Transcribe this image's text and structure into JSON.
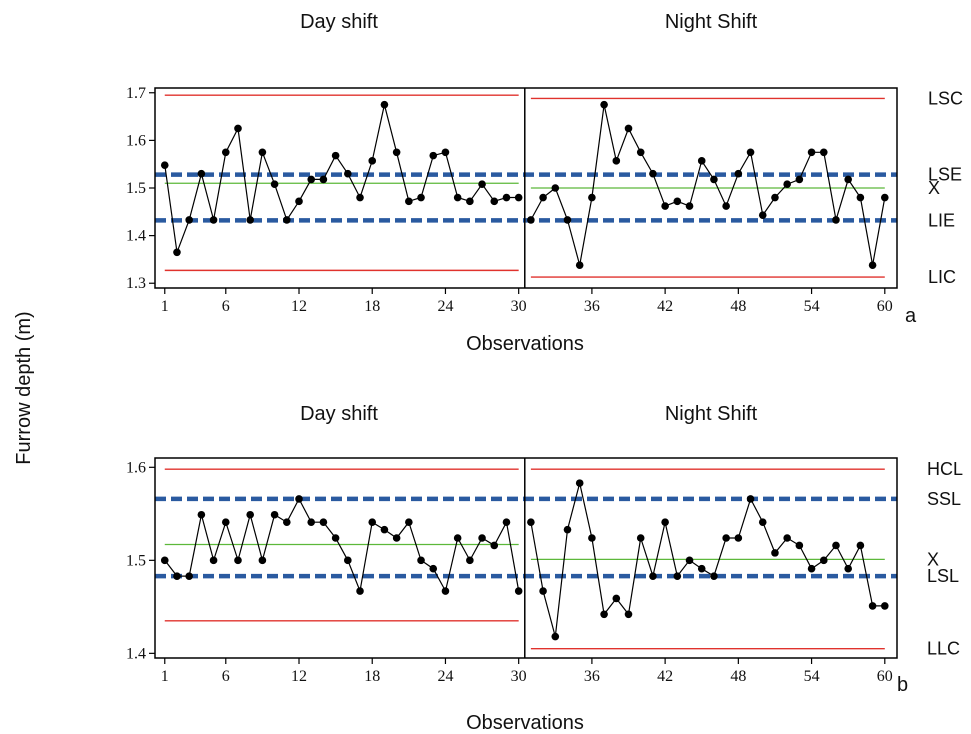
{
  "ylabel": "Furrow  depth (m)",
  "chart_data": [
    {
      "type": "line",
      "panel": "a",
      "xlabel": "Observations",
      "section_titles": [
        "Day shift",
        "Night Shift"
      ],
      "x_ticks": [
        1,
        6,
        12,
        18,
        24,
        30,
        36,
        42,
        48,
        54,
        60
      ],
      "y_ticks": [
        "1.3",
        "1.4",
        "1.5",
        "1.6",
        "1.7"
      ],
      "xlim": [
        0.2,
        61
      ],
      "ylim": [
        1.29,
        1.71
      ],
      "divider_at": 30.5,
      "colors": {
        "control": "#e0322d",
        "spec": "#2a5aa0",
        "mean": "#5cb83a",
        "data": "#000000"
      },
      "series": [
        {
          "x": [
            1,
            2,
            3,
            4,
            5,
            6,
            7,
            8,
            9,
            10,
            11,
            12,
            13,
            14,
            15,
            16,
            17,
            18,
            19,
            20,
            21,
            22,
            23,
            24,
            25,
            26,
            27,
            28,
            29,
            30
          ],
          "values": [
            1.548,
            1.365,
            1.433,
            1.53,
            1.433,
            1.575,
            1.625,
            1.433,
            1.575,
            1.508,
            1.433,
            1.472,
            1.518,
            1.518,
            1.568,
            1.53,
            1.48,
            1.557,
            1.675,
            1.575,
            1.472,
            1.48,
            1.568,
            1.575,
            1.48,
            1.472,
            1.508,
            1.472,
            1.48,
            1.48
          ]
        },
        {
          "x": [
            31,
            32,
            33,
            34,
            35,
            36,
            37,
            38,
            39,
            40,
            41,
            42,
            43,
            44,
            45,
            46,
            47,
            48,
            49,
            50,
            51,
            52,
            53,
            54,
            55,
            56,
            57,
            58,
            59,
            60
          ],
          "values": [
            1.433,
            1.48,
            1.5,
            1.433,
            1.338,
            1.48,
            1.675,
            1.557,
            1.625,
            1.575,
            1.53,
            1.462,
            1.472,
            1.462,
            1.557,
            1.518,
            1.462,
            1.53,
            1.575,
            1.443,
            1.48,
            1.508,
            1.518,
            1.575,
            1.575,
            1.433,
            1.518,
            1.48,
            1.338,
            1.48
          ]
        }
      ],
      "limits": [
        {
          "label": "LSC",
          "kind": "control",
          "segments": [
            [
              1,
              30,
              1.695
            ],
            [
              31,
              60,
              1.688
            ]
          ]
        },
        {
          "label": "LSE",
          "kind": "spec",
          "segments": [
            [
              0.2,
              61,
              1.528
            ]
          ]
        },
        {
          "label": "X",
          "kind": "mean",
          "segments": [
            [
              1,
              30,
              1.51
            ],
            [
              31,
              60,
              1.5
            ]
          ]
        },
        {
          "label": "LIE",
          "kind": "spec",
          "segments": [
            [
              0.2,
              61,
              1.432
            ]
          ]
        },
        {
          "label": "LIC",
          "kind": "control",
          "segments": [
            [
              1,
              30,
              1.327
            ],
            [
              31,
              60,
              1.313
            ]
          ]
        }
      ],
      "right_label_values": [
        1.688,
        1.528,
        1.5,
        1.432,
        1.313
      ]
    },
    {
      "type": "line",
      "panel": "b",
      "xlabel": "Observations",
      "section_titles": [
        "Day shift",
        "Night Shift"
      ],
      "x_ticks": [
        1,
        6,
        12,
        18,
        24,
        30,
        36,
        42,
        48,
        54,
        60
      ],
      "y_ticks": [
        "1.4",
        "1.5",
        "1.6"
      ],
      "xlim": [
        0.2,
        61
      ],
      "ylim": [
        1.395,
        1.61
      ],
      "divider_at": 30.5,
      "colors": {
        "control": "#e0322d",
        "spec": "#2a5aa0",
        "mean": "#5cb83a",
        "data": "#000000"
      },
      "series": [
        {
          "x": [
            1,
            2,
            3,
            4,
            5,
            6,
            7,
            8,
            9,
            10,
            11,
            12,
            13,
            14,
            15,
            16,
            17,
            18,
            19,
            20,
            21,
            22,
            23,
            24,
            25,
            26,
            27,
            28,
            29,
            30
          ],
          "values": [
            1.5,
            1.483,
            1.483,
            1.549,
            1.5,
            1.541,
            1.5,
            1.549,
            1.5,
            1.549,
            1.541,
            1.566,
            1.541,
            1.541,
            1.524,
            1.5,
            1.467,
            1.541,
            1.533,
            1.524,
            1.541,
            1.5,
            1.491,
            1.467,
            1.524,
            1.5,
            1.524,
            1.516,
            1.541,
            1.467
          ]
        },
        {
          "x": [
            31,
            32,
            33,
            34,
            35,
            36,
            37,
            38,
            39,
            40,
            41,
            42,
            43,
            44,
            45,
            46,
            47,
            48,
            49,
            50,
            51,
            52,
            53,
            54,
            55,
            56,
            57,
            58,
            59,
            60
          ],
          "values": [
            1.541,
            1.467,
            1.418,
            1.533,
            1.583,
            1.524,
            1.442,
            1.459,
            1.442,
            1.524,
            1.483,
            1.541,
            1.483,
            1.5,
            1.491,
            1.483,
            1.524,
            1.524,
            1.566,
            1.541,
            1.508,
            1.524,
            1.516,
            1.491,
            1.5,
            1.516,
            1.491,
            1.516,
            1.451,
            1.451
          ]
        }
      ],
      "limits": [
        {
          "label": "HCL",
          "kind": "control",
          "segments": [
            [
              1,
              30,
              1.598
            ],
            [
              31,
              60,
              1.598
            ]
          ]
        },
        {
          "label": "SSL",
          "kind": "spec",
          "segments": [
            [
              0.2,
              61,
              1.566
            ]
          ]
        },
        {
          "label": "X",
          "kind": "mean",
          "segments": [
            [
              1,
              30,
              1.517
            ],
            [
              31,
              60,
              1.501
            ]
          ]
        },
        {
          "label": "LSL",
          "kind": "spec",
          "segments": [
            [
              0.2,
              61,
              1.483
            ]
          ]
        },
        {
          "label": "LLC",
          "kind": "control",
          "segments": [
            [
              1,
              30,
              1.435
            ],
            [
              31,
              60,
              1.405
            ]
          ]
        }
      ],
      "right_label_values": [
        1.598,
        1.566,
        1.501,
        1.483,
        1.405
      ]
    }
  ]
}
